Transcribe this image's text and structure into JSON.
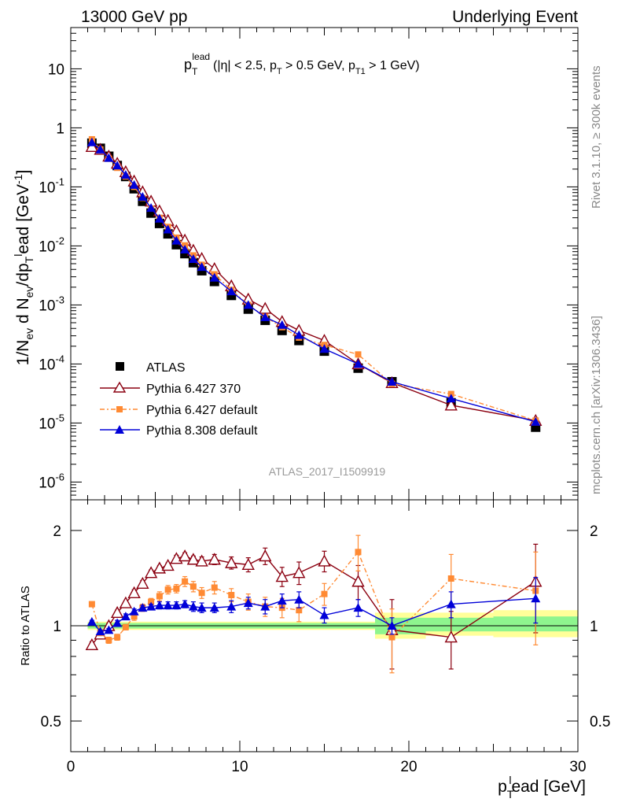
{
  "header": {
    "energy_label": "13000 GeV pp",
    "process_label": "Underlying Event"
  },
  "side_labels": {
    "rivet": "Rivet 3.1.10, ≥ 300k events",
    "mcplots": "mcplots.cern.ch [arXiv:1306.3436]"
  },
  "analysis_tag": "ATLAS_2017_I1509919",
  "colors": {
    "atlas": "#000000",
    "pythia6_370": "#8b0010",
    "pythia6_default": "#ff8a33",
    "pythia8_default": "#0000d8",
    "band_inner": "#8ef58e",
    "band_outer": "#ffff99"
  },
  "chart_data": [
    {
      "type": "scatter",
      "panel": "main",
      "title_parts": {
        "var": "p",
        "var_sub": "T",
        "var_sup": "lead",
        "cuts": "(|η| < 2.5, p",
        "cuts_sub1": "T",
        "cuts_mid": " > 0.5 GeV, p",
        "cuts_sub2": "T1",
        "cuts_end": " > 1 GeV)"
      },
      "ylabel": "1/N_ev d N_ev/dp_T^lead [GeV^-1]",
      "yscale": "log",
      "xlim": [
        0,
        30
      ],
      "ylim": [
        5e-07,
        50
      ],
      "ytick_labels": [
        "10",
        "1",
        "10^-1",
        "10^-2",
        "10^-3",
        "10^-4",
        "10^-5",
        "10^-6"
      ],
      "legend": {
        "position": "lower-left",
        "entries": [
          "ATLAS",
          "Pythia 6.427 370",
          "Pythia 6.427 default",
          "Pythia 8.308 default"
        ]
      },
      "x": [
        1.25,
        1.75,
        2.25,
        2.75,
        3.25,
        3.75,
        4.25,
        4.75,
        5.25,
        5.75,
        6.25,
        6.75,
        7.25,
        7.75,
        8.5,
        9.5,
        10.5,
        11.5,
        12.5,
        13.5,
        15.0,
        17.0,
        19.0,
        22.5,
        27.5
      ],
      "series": [
        {
          "name": "ATLAS",
          "marker": "square",
          "values": [
            0.55,
            0.45,
            0.33,
            0.23,
            0.15,
            0.093,
            0.057,
            0.036,
            0.024,
            0.016,
            0.0105,
            0.0074,
            0.0052,
            0.0038,
            0.0025,
            0.00145,
            0.00085,
            0.00055,
            0.00037,
            0.00025,
            0.000165,
            8.5e-05,
            5e-05,
            2.2e-05,
            8.5e-06
          ]
        },
        {
          "name": "Pythia 6.427 370",
          "marker": "open-triangle",
          "values": [
            0.48,
            0.43,
            0.33,
            0.25,
            0.18,
            0.125,
            0.082,
            0.057,
            0.039,
            0.027,
            0.018,
            0.0125,
            0.0084,
            0.0061,
            0.0041,
            0.0021,
            0.00125,
            0.00087,
            0.00052,
            0.00037,
            0.00025,
            0.0001,
            4.8e-05,
            2e-05,
            1.1e-05
          ]
        },
        {
          "name": "Pythia 6.427 default",
          "marker": "small-square",
          "values": [
            0.64,
            0.43,
            0.3,
            0.21,
            0.15,
            0.1,
            0.065,
            0.043,
            0.03,
            0.021,
            0.0138,
            0.0102,
            0.0069,
            0.0048,
            0.0033,
            0.0018,
            0.001,
            0.00063,
            0.00042,
            0.00028,
            0.00021,
            0.000145,
            4.6e-05,
            3.1e-05,
            1.1e-05
          ]
        },
        {
          "name": "Pythia 8.308 default",
          "marker": "filled-triangle",
          "values": [
            0.57,
            0.43,
            0.31,
            0.23,
            0.16,
            0.108,
            0.068,
            0.044,
            0.029,
            0.019,
            0.0123,
            0.0087,
            0.006,
            0.0044,
            0.0029,
            0.0017,
            0.001,
            0.00062,
            0.00046,
            0.00031,
            0.00018,
            0.0001,
            5e-05,
            2.6e-05,
            1.05e-05
          ]
        }
      ]
    },
    {
      "type": "scatter",
      "panel": "ratio",
      "xlabel": "p_T^lead [GeV]",
      "ylabel": "Ratio to ATLAS",
      "yscale": "log",
      "xlim": [
        0,
        30
      ],
      "ylim": [
        0.4,
        2.5
      ],
      "xtick_labels": [
        "0",
        "10",
        "20",
        "30"
      ],
      "ytick_labels": [
        "2",
        "1",
        "0.5"
      ],
      "x": [
        1.25,
        1.75,
        2.25,
        2.75,
        3.25,
        3.75,
        4.25,
        4.75,
        5.25,
        5.75,
        6.25,
        6.75,
        7.25,
        7.75,
        8.5,
        9.5,
        10.5,
        11.5,
        12.5,
        13.5,
        15.0,
        17.0,
        19.0,
        22.5,
        27.5
      ],
      "uncertainty_bands": [
        {
          "x": [
            1.0,
            18.0
          ],
          "inner": [
            0.98,
            1.02
          ],
          "outer": [
            0.97,
            1.03
          ]
        },
        {
          "x": [
            18.0,
            21.0
          ],
          "inner": [
            0.94,
            1.06
          ],
          "outer": [
            0.91,
            1.1
          ]
        },
        {
          "x": [
            21.0,
            25.0
          ],
          "inner": [
            0.96,
            1.06
          ],
          "outer": [
            0.93,
            1.1
          ]
        },
        {
          "x": [
            25.0,
            30.0
          ],
          "inner": [
            0.96,
            1.07
          ],
          "outer": [
            0.92,
            1.12
          ]
        }
      ],
      "series": [
        {
          "name": "Pythia 6.427 370",
          "marker": "open-triangle",
          "values": [
            0.87,
            0.94,
            1.0,
            1.1,
            1.18,
            1.27,
            1.36,
            1.47,
            1.52,
            1.55,
            1.63,
            1.66,
            1.62,
            1.6,
            1.62,
            1.58,
            1.56,
            1.66,
            1.43,
            1.47,
            1.6,
            1.38,
            0.97,
            0.92,
            1.38
          ],
          "errors": [
            0.02,
            0.02,
            0.02,
            0.02,
            0.02,
            0.03,
            0.03,
            0.03,
            0.03,
            0.03,
            0.04,
            0.04,
            0.04,
            0.05,
            0.06,
            0.07,
            0.08,
            0.1,
            0.1,
            0.12,
            0.12,
            0.17,
            0.24,
            0.19,
            0.43
          ]
        },
        {
          "name": "Pythia 6.427 default",
          "marker": "small-square",
          "values": [
            1.17,
            0.95,
            0.9,
            0.92,
            0.99,
            1.07,
            1.14,
            1.19,
            1.24,
            1.3,
            1.31,
            1.38,
            1.33,
            1.27,
            1.32,
            1.25,
            1.19,
            1.15,
            1.14,
            1.12,
            1.26,
            1.71,
            0.92,
            1.41,
            1.29
          ],
          "errors": [
            0.02,
            0.02,
            0.02,
            0.02,
            0.02,
            0.03,
            0.03,
            0.03,
            0.04,
            0.04,
            0.04,
            0.05,
            0.05,
            0.05,
            0.06,
            0.06,
            0.07,
            0.08,
            0.08,
            0.09,
            0.1,
            0.22,
            0.21,
            0.27,
            0.42
          ]
        },
        {
          "name": "Pythia 8.308 default",
          "marker": "filled-triangle",
          "values": [
            1.03,
            0.96,
            0.97,
            1.02,
            1.07,
            1.11,
            1.14,
            1.15,
            1.16,
            1.16,
            1.16,
            1.17,
            1.15,
            1.14,
            1.14,
            1.15,
            1.18,
            1.15,
            1.2,
            1.21,
            1.08,
            1.14,
            1.0,
            1.17,
            1.22
          ],
          "errors": [
            0.01,
            0.01,
            0.01,
            0.02,
            0.02,
            0.02,
            0.02,
            0.02,
            0.03,
            0.03,
            0.03,
            0.03,
            0.04,
            0.04,
            0.04,
            0.05,
            0.05,
            0.06,
            0.06,
            0.07,
            0.06,
            0.07,
            0.06,
            0.11,
            0.2
          ]
        }
      ]
    }
  ]
}
